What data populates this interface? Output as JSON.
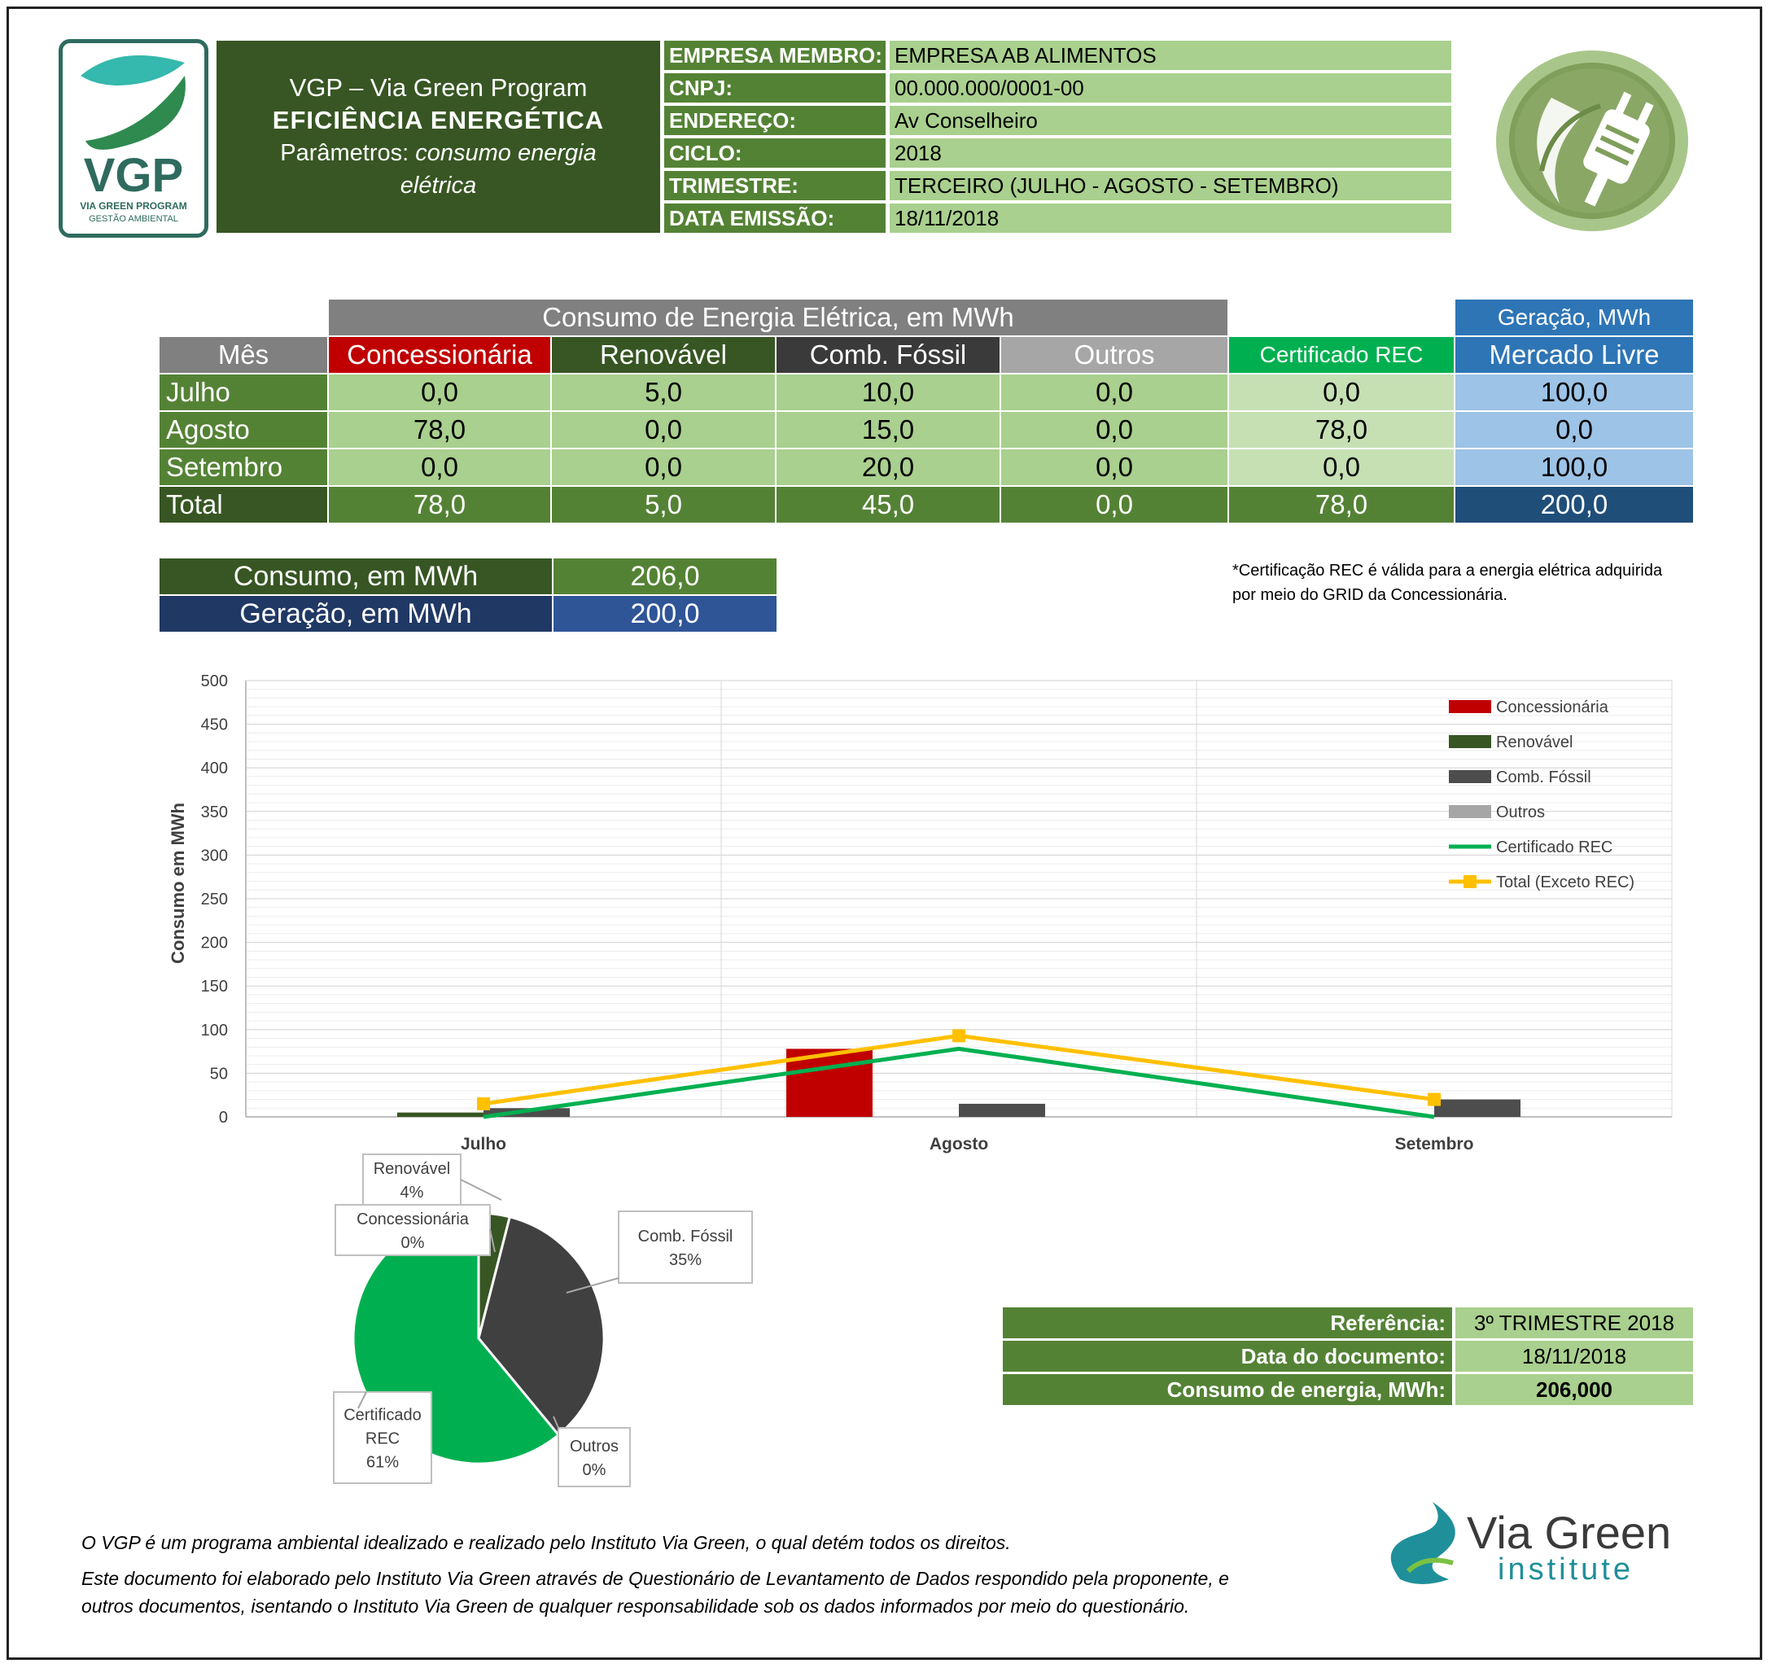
{
  "header": {
    "logo_text": "VGP",
    "logo_sub1": "VIA GREEN PROGRAM",
    "logo_sub2": "GESTÃO AMBIENTAL",
    "title_line1": "VGP – Via Green Program",
    "title_line2": "EFICIÊNCIA ENERGÉTICA",
    "title_line3_prefix": "Parâmetros: ",
    "title_line3_italic": "consumo energia",
    "title_line4_italic": "elétrica"
  },
  "info": [
    {
      "label": "EMPRESA MEMBRO:",
      "value": "EMPRESA AB ALIMENTOS"
    },
    {
      "label": "CNPJ:",
      "value": "00.000.000/0001-00"
    },
    {
      "label": "ENDEREÇO:",
      "value": "Av Conselheiro"
    },
    {
      "label": "CICLO:",
      "value": "2018"
    },
    {
      "label": "TRIMESTRE:",
      "value": "TERCEIRO (JULHO - AGOSTO - SETEMBRO)"
    },
    {
      "label": "DATA EMISSÃO:",
      "value": "18/11/2018"
    }
  ],
  "table": {
    "group_consumo": "Consumo de Energia Elétrica, em MWh",
    "group_geracao": "Geração, MWh",
    "columns": [
      "Mês",
      "Concessionária",
      "Renovável",
      "Comb. Fóssil",
      "Outros",
      "Certificado REC",
      "Mercado Livre"
    ],
    "rows": [
      {
        "label": "Julho",
        "values": [
          "0,0",
          "5,0",
          "10,0",
          "0,0",
          "0,0",
          "100,0"
        ]
      },
      {
        "label": "Agosto",
        "values": [
          "78,0",
          "0,0",
          "15,0",
          "0,0",
          "78,0",
          "0,0"
        ]
      },
      {
        "label": "Setembro",
        "values": [
          "0,0",
          "0,0",
          "20,0",
          "0,0",
          "0,0",
          "100,0"
        ]
      },
      {
        "label": "Total",
        "values": [
          "78,0",
          "5,0",
          "45,0",
          "0,0",
          "78,0",
          "200,0"
        ]
      }
    ]
  },
  "summary": {
    "consumo_label": "Consumo, em MWh",
    "consumo_value": "206,0",
    "geracao_label": "Geração, em MWh",
    "geracao_value": "200,0"
  },
  "note": {
    "line1": "*Certificação REC é válida para a energia elétrica adquirida",
    "line2": "por meio do GRID da Concessionária."
  },
  "chart_data": [
    {
      "type": "bar",
      "ylabel": "Consumo em MWh",
      "ylim": [
        0,
        500
      ],
      "yticks": [
        0,
        50,
        100,
        150,
        200,
        250,
        300,
        350,
        400,
        450,
        500
      ],
      "categories": [
        "Julho",
        "Agosto",
        "Setembro"
      ],
      "series": [
        {
          "name": "Concessionária",
          "kind": "bar",
          "color": "#c00000",
          "values": [
            0,
            78,
            0
          ]
        },
        {
          "name": "Renovável",
          "kind": "bar",
          "color": "#375623",
          "values": [
            5,
            0,
            0
          ]
        },
        {
          "name": "Comb. Fóssil",
          "kind": "bar",
          "color": "#4d4d4d",
          "values": [
            10,
            15,
            20
          ]
        },
        {
          "name": "Outros",
          "kind": "bar",
          "color": "#a6a6a6",
          "values": [
            0,
            0,
            0
          ]
        },
        {
          "name": "Certificado REC",
          "kind": "line",
          "color": "#00b050",
          "values": [
            0,
            78,
            0
          ]
        },
        {
          "name": "Total (Exceto REC)",
          "kind": "line-marker",
          "color": "#ffc000",
          "values": [
            15,
            93,
            20
          ]
        }
      ],
      "legend": "top-right",
      "grid": true
    },
    {
      "type": "pie",
      "slices": [
        {
          "name": "Renovável",
          "label_top": "Renovável",
          "label_bottom": "4%",
          "value": 4,
          "color": "#375623"
        },
        {
          "name": "Comb. Fóssil",
          "label_top": "Comb. Fóssil",
          "label_bottom": "35%",
          "value": 35,
          "color": "#404040"
        },
        {
          "name": "Outros",
          "label_top": "Outros",
          "label_bottom": "0%",
          "value": 0,
          "color": "#a6a6a6"
        },
        {
          "name": "Certificado REC",
          "label_top": "Certificado",
          "label_mid": "REC",
          "label_bottom": "61%",
          "value": 61,
          "color": "#00b050"
        },
        {
          "name": "Concessionária",
          "label_top": "Concessionária",
          "label_bottom": "0%",
          "value": 0,
          "color": "#c00000"
        }
      ]
    }
  ],
  "reference": [
    {
      "label": "Referência:",
      "value": "3º TRIMESTRE 2018"
    },
    {
      "label": "Data do documento:",
      "value": "18/11/2018"
    },
    {
      "label": "Consumo de energia, MWh:",
      "value": "206,000"
    }
  ],
  "footer": {
    "line1": "O VGP é um programa ambiental idealizado e realizado pelo Instituto Via Green, o qual detém todos os direitos.",
    "line2": "Este documento foi elaborado pelo Instituto Via Green através de Questionário de Levantamento de Dados respondido pela proponente, e",
    "line3": "outros documentos, isentando o Instituto Via Green de qualquer responsabilidade sob os dados informados por meio do questionário."
  },
  "brand": {
    "name": "Via Green",
    "sub": "institute",
    "accent": "#1f8f9a"
  }
}
